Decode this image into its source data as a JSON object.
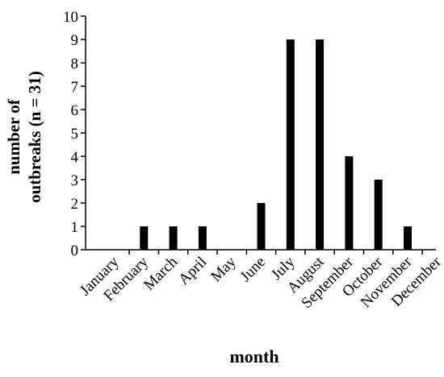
{
  "chart_data": {
    "type": "bar",
    "categories": [
      "January",
      "February",
      "March",
      "April",
      "May",
      "June",
      "July",
      "August",
      "September",
      "October",
      "November",
      "December"
    ],
    "values": [
      0,
      1,
      1,
      1,
      0,
      2,
      9,
      9,
      4,
      3,
      1,
      0
    ],
    "title": "",
    "xlabel": "month",
    "ylabel_lines": [
      "number of",
      "outbreaks (n = 31)"
    ],
    "ylim": [
      0,
      10
    ],
    "yticks": [
      0,
      1,
      2,
      3,
      4,
      5,
      6,
      7,
      8,
      9,
      10
    ],
    "grid": false,
    "legend": "none",
    "bar_color": "#000000"
  }
}
